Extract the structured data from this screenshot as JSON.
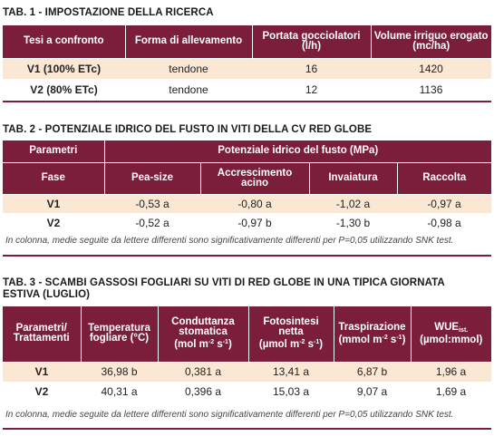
{
  "tab1": {
    "title": "TAB. 1 - IMPOSTAZIONE DELLA RICERCA",
    "headers": [
      "Tesi a confronto",
      "Forma di allevamento",
      "Portata gocciolatori (l/h)",
      "Volume irriguo erogato (mc/ha)"
    ],
    "rows": [
      [
        "V1 (100% ETc)",
        "tendone",
        "16",
        "1420"
      ],
      [
        "V2 (80% ETc)",
        "tendone",
        "12",
        "1136"
      ]
    ]
  },
  "tab2": {
    "title": "TAB. 2 - POTENZIALE IDRICO DEL FUSTO IN VITI DELLA CV RED GLOBE",
    "group_header_left": "Parametri",
    "group_header_right": "Potenziale idrico del fusto (MPa)",
    "headers": [
      "Fase",
      "Pea-size",
      "Accrescimento acino",
      "Invaiatura",
      "Raccolta"
    ],
    "rows": [
      [
        "V1",
        "-0,53 a",
        "-0,80 a",
        "-1,02 a",
        "-0,97 a"
      ],
      [
        "V2",
        "-0,52 a",
        "-0,97 b",
        "-1,30 b",
        "-0,98 a"
      ]
    ],
    "note": "In colonna, medie seguite da lettere differenti sono significativamente differenti per P=0,05 utilizzando SNK test."
  },
  "tab3": {
    "title_line1": "TAB. 3 - SCAMBI GASSOSI FOGLIARI SU VITI DI RED GLOBE IN UNA TIPICA GIORNATA",
    "title_line2": "ESTIVA (LUGLIO)",
    "headers": {
      "h1": "Parametri/ Trattamenti",
      "h2": "Temperatura fogliare (°C)",
      "h3a": "Conduttanza stomatica",
      "h3b": "(mol m",
      "h3sup1": "-2",
      "h3c": " s",
      "h3sup2": "-1",
      "h3d": ")",
      "h4a": "Fotosintesi netta",
      "h4b": "(µmol m",
      "h4sup1": "-2",
      "h4c": " s",
      "h4sup2": "-1",
      "h4d": ")",
      "h5a": "Traspirazione",
      "h5b": "(mmol m",
      "h5sup1": "-2",
      "h5c": " s",
      "h5sup2": "-1",
      "h5d": ")",
      "h6a": "WUE",
      "h6sub": "ist.",
      "h6b": "(µmol:mmol)"
    },
    "rows": [
      [
        "V1",
        "36,98 b",
        "0,381 a",
        "13,41 a",
        "6,87 b",
        "1,96 a"
      ],
      [
        "V2",
        "40,31 a",
        "0,396 a",
        "15,03 a",
        "9,07 a",
        "1,69 a"
      ]
    ],
    "note": "In colonna, medie seguite da lettere differenti sono significativamente differenti per P=0,05 utilizzando SNK test."
  }
}
